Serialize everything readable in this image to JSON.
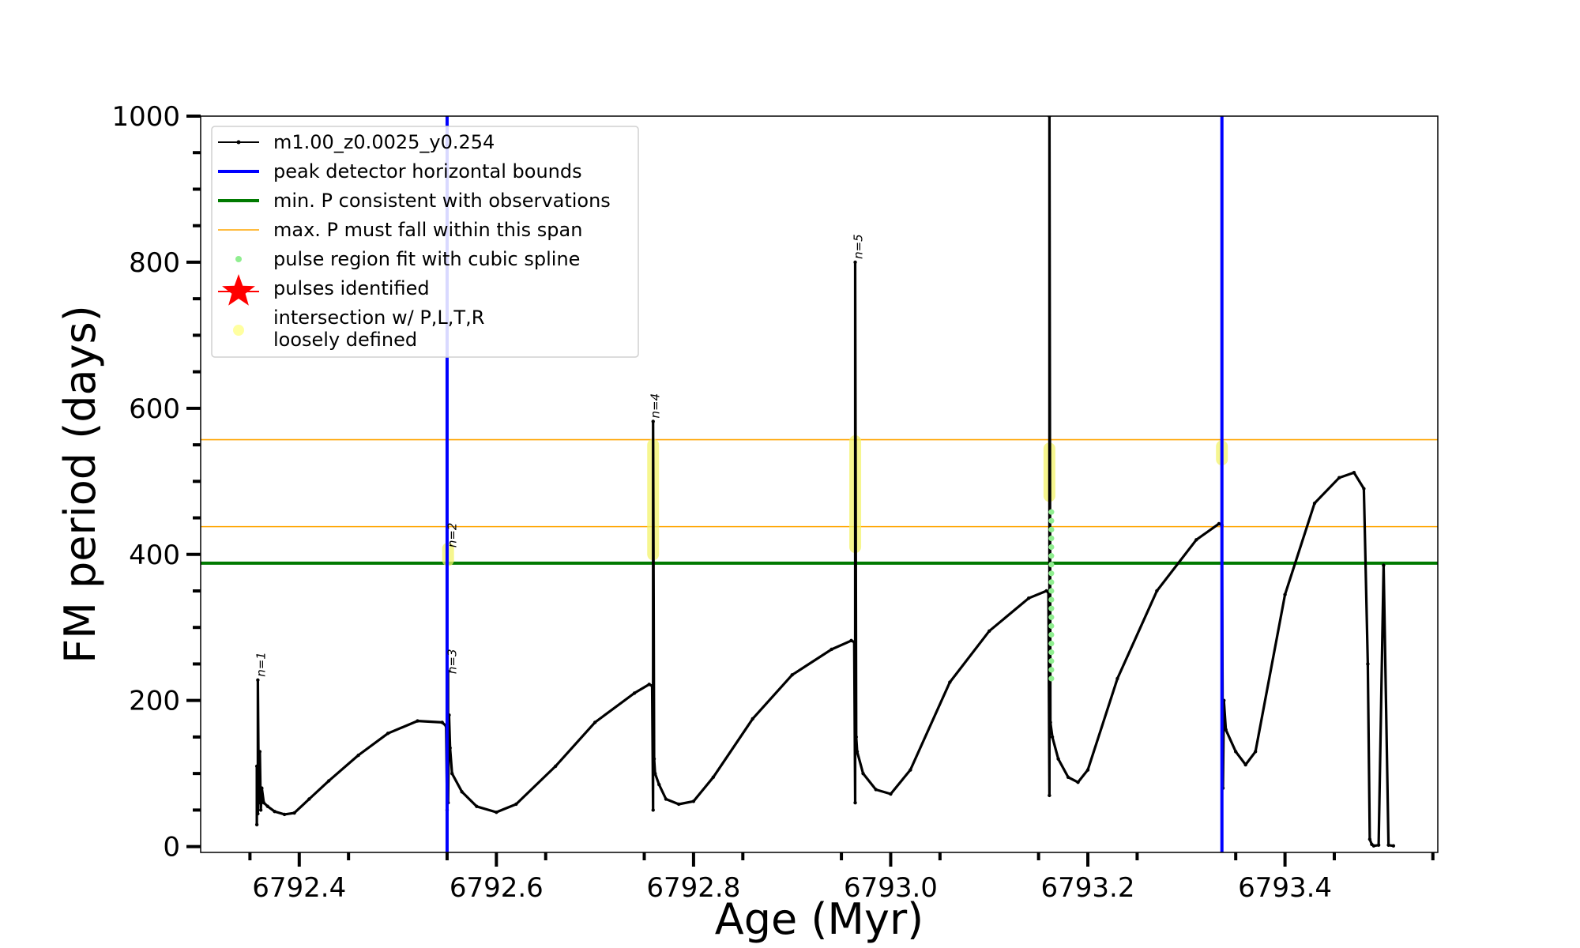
{
  "chart_data": {
    "type": "line",
    "title": "",
    "xlabel": "Age (Myr)",
    "ylabel": "FM period (days)",
    "xlim": [
      6792.3,
      6793.555
    ],
    "ylim": [
      -8,
      1000
    ],
    "xticks": [
      6792.4,
      6792.6,
      6792.8,
      6793.0,
      6793.2,
      6793.4
    ],
    "xtick_labels": [
      "6792.4",
      "6792.6",
      "6792.8",
      "6793.0",
      "6793.2",
      "6793.4"
    ],
    "yticks": [
      0,
      200,
      400,
      600,
      800,
      1000
    ],
    "ytick_labels": [
      "0",
      "200",
      "400",
      "600",
      "800",
      "1000"
    ],
    "legend_position": "top-left",
    "legend": [
      {
        "label": "m1.00_z0.0025_y0.254",
        "kind": "line-dot",
        "color": "#000000"
      },
      {
        "label": "peak detector horizontal bounds",
        "kind": "line",
        "color": "#0000ff"
      },
      {
        "label": "min. P consistent with observations",
        "kind": "line",
        "color": "#007a00"
      },
      {
        "label": "max. P must fall within this span",
        "kind": "thin-line",
        "color": "#ffa500"
      },
      {
        "label": "pulse region fit with cubic spline",
        "kind": "dot",
        "color": "#90ee90"
      },
      {
        "label": "pulses identified",
        "kind": "star",
        "color": "#ff0000"
      },
      {
        "label": "intersection w/ P,L,T,R",
        "label2": "loosely defined",
        "kind": "dot",
        "color": "#ffffa0"
      }
    ],
    "vertical_lines": [
      6792.55,
      6793.336
    ],
    "min_period": 388,
    "max_period_span": [
      438,
      557
    ],
    "pulse_labels": [
      {
        "text": "n=1",
        "x": 6792.362,
        "y": 228
      },
      {
        "text": "n=2",
        "x": 6792.556,
        "y": 405
      },
      {
        "text": "n=3",
        "x": 6792.556,
        "y": 232
      },
      {
        "text": "n=4",
        "x": 6792.762,
        "y": 582
      },
      {
        "text": "n=5",
        "x": 6792.968,
        "y": 800
      }
    ],
    "series": [
      {
        "name": "m1.00_z0.0025_y0.254",
        "color": "#000000",
        "x": [
          6792.357,
          6792.357,
          6792.358,
          6792.358,
          6792.359,
          6792.36,
          6792.361,
          6792.362,
          6792.364,
          6792.368,
          6792.375,
          6792.385,
          6792.395,
          6792.41,
          6792.43,
          6792.46,
          6792.49,
          6792.52,
          6792.545,
          6792.549,
          6792.55,
          6792.551,
          6792.551,
          6792.552,
          6792.553,
          6792.555,
          6792.565,
          6792.58,
          6792.6,
          6792.62,
          6792.66,
          6792.7,
          6792.74,
          6792.755,
          6792.758,
          6792.759,
          6792.759,
          6792.76,
          6792.761,
          6792.765,
          6792.772,
          6792.785,
          6792.8,
          6792.82,
          6792.86,
          6792.9,
          6792.94,
          6792.96,
          6792.963,
          6792.964,
          6792.964,
          6792.965,
          6792.966,
          6792.972,
          6792.985,
          6793.0,
          6793.02,
          6793.06,
          6793.1,
          6793.14,
          6793.158,
          6793.16,
          6793.161,
          6793.161,
          6793.162,
          6793.164,
          6793.17,
          6793.18,
          6793.19,
          6793.2,
          6793.23,
          6793.27,
          6793.31,
          6793.333,
          6793.336,
          6793.337,
          6793.338,
          6793.34,
          6793.35,
          6793.36,
          6793.37,
          6793.4,
          6793.43,
          6793.455,
          6793.47,
          6793.48,
          6793.484,
          6793.486,
          6793.488,
          6793.49,
          6793.495,
          6793.5,
          6793.505,
          6793.51
        ],
        "y": [
          30,
          110,
          45,
          228,
          60,
          130,
          50,
          80,
          60,
          55,
          48,
          44,
          46,
          65,
          90,
          125,
          155,
          172,
          170,
          165,
          50,
          240,
          60,
          180,
          135,
          100,
          75,
          55,
          47,
          58,
          110,
          170,
          210,
          222,
          220,
          50,
          582,
          120,
          100,
          85,
          65,
          58,
          62,
          95,
          175,
          235,
          270,
          282,
          280,
          60,
          800,
          150,
          130,
          100,
          78,
          72,
          105,
          225,
          295,
          340,
          350,
          348,
          70,
          1000,
          170,
          150,
          120,
          95,
          88,
          105,
          230,
          350,
          420,
          442,
          440,
          80,
          200,
          160,
          130,
          112,
          130,
          345,
          470,
          505,
          512,
          490,
          250,
          10,
          3,
          1,
          2,
          385,
          2,
          1
        ]
      }
    ],
    "spline_points": [
      {
        "x": 6793.163,
        "y_from": 230,
        "y_to": 460
      }
    ],
    "intersection_regions": [
      {
        "x": 6792.551,
        "y_from": 392,
        "y_to": 408
      },
      {
        "x": 6792.759,
        "y_from": 400,
        "y_to": 550
      },
      {
        "x": 6792.964,
        "y_from": 410,
        "y_to": 555
      },
      {
        "x": 6793.161,
        "y_from": 480,
        "y_to": 545
      },
      {
        "x": 6793.336,
        "y_from": 530,
        "y_to": 548
      }
    ]
  }
}
